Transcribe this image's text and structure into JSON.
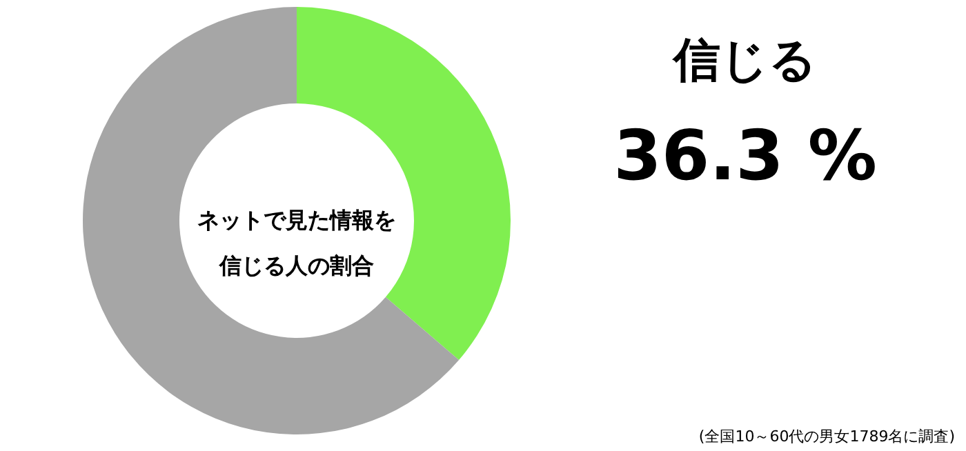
{
  "chart_data": {
    "type": "donut",
    "title": "ネットで見た情報を信じる人の割合",
    "categories": [
      "信じる",
      null
    ],
    "values": [
      36.3,
      63.7
    ],
    "colors": [
      "#80ef50",
      "#a6a6a6"
    ],
    "value_labels": [
      "36.3 %",
      null
    ],
    "annotations": [
      "(全国10～60代の男女1789名に調査)"
    ]
  }
}
